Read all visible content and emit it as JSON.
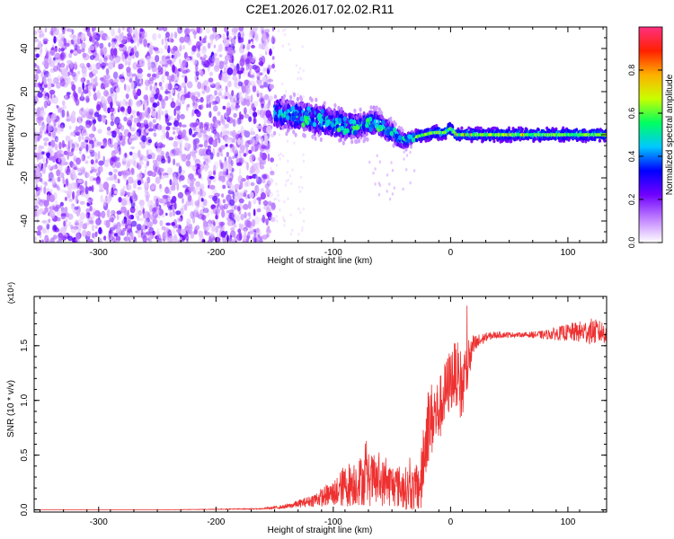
{
  "chart_data": [
    {
      "type": "heatmap",
      "title": "C2E1.2026.017.02.02.R11",
      "xlabel": "Height of straight line (km)",
      "ylabel": "Frequency (Hz)",
      "xlim": [
        -355,
        133
      ],
      "ylim": [
        -50,
        50
      ],
      "xticks": [
        -300,
        -200,
        -100,
        0,
        100
      ],
      "xtick_labels": [
        "-300",
        "-200",
        "-100",
        "0",
        "100"
      ],
      "yticks": [
        -40,
        -20,
        0,
        20,
        40
      ],
      "ytick_labels": [
        "-40",
        "-20",
        "0",
        "20",
        "40"
      ],
      "noise_region_x": [
        -355,
        -155
      ],
      "signal_track": [
        {
          "x": -150,
          "f": 10,
          "halfwidth": 6
        },
        {
          "x": -130,
          "f": 9,
          "halfwidth": 6
        },
        {
          "x": -110,
          "f": 7,
          "halfwidth": 6
        },
        {
          "x": -95,
          "f": 5,
          "halfwidth": 6
        },
        {
          "x": -80,
          "f": 4,
          "halfwidth": 5
        },
        {
          "x": -65,
          "f": 6,
          "halfwidth": 5
        },
        {
          "x": -50,
          "f": 1,
          "halfwidth": 4
        },
        {
          "x": -40,
          "f": -3,
          "halfwidth": 3
        },
        {
          "x": -30,
          "f": -1,
          "halfwidth": 2
        },
        {
          "x": -15,
          "f": 1,
          "halfwidth": 2
        },
        {
          "x": -5,
          "f": 1,
          "halfwidth": 2
        },
        {
          "x": 0,
          "f": 3,
          "halfwidth": 2
        },
        {
          "x": 5,
          "f": 0,
          "halfwidth": 2
        },
        {
          "x": 20,
          "f": 0,
          "halfwidth": 2
        },
        {
          "x": 133,
          "f": 0,
          "halfwidth": 2
        }
      ],
      "colorbar": {
        "label": "Normalized spectral amplitude",
        "range": [
          0,
          1
        ],
        "ticks": [
          0.0,
          0.2,
          0.4,
          0.6,
          0.8
        ],
        "tick_labels": [
          "0.0",
          "0.2",
          "0.4",
          "0.6",
          "0.8"
        ],
        "colors": [
          "#ffffff",
          "#c080ff",
          "#7000ff",
          "#0000ff",
          "#00c8ff",
          "#00ff60",
          "#c8ff00",
          "#ffb000",
          "#ff2000",
          "#ff3080"
        ]
      }
    },
    {
      "type": "line",
      "xlabel": "Height of straight line (km)",
      "ylabel": "SNR (10 * v/v)",
      "scale_label": "(x10⁴)",
      "xlim": [
        -355,
        133
      ],
      "ylim": [
        -0.02,
        1.95
      ],
      "xticks": [
        -300,
        -200,
        -100,
        0,
        100
      ],
      "xtick_labels": [
        "-300",
        "-200",
        "-100",
        "0",
        "100"
      ],
      "yticks": [
        0.0,
        0.5,
        1.0,
        1.5
      ],
      "ytick_labels": [
        "0.0",
        "0.5",
        "1.0",
        "1.5"
      ],
      "color": "#ee3030",
      "series": [
        {
          "name": "SNR",
          "x": [
            -355,
            -250,
            -160,
            -140,
            -120,
            -100,
            -90,
            -80,
            -70,
            -60,
            -50,
            -40,
            -30,
            -25,
            -20,
            -15,
            -10,
            -5,
            0,
            5,
            10,
            15,
            20,
            30,
            40,
            60,
            80,
            100,
            120,
            133
          ],
          "y": [
            0.0,
            0.0,
            0.01,
            0.03,
            0.08,
            0.15,
            0.22,
            0.26,
            0.28,
            0.25,
            0.23,
            0.2,
            0.18,
            0.25,
            0.75,
            0.85,
            0.9,
            1.05,
            1.2,
            1.25,
            1.1,
            1.35,
            1.5,
            1.58,
            1.6,
            1.6,
            1.6,
            1.62,
            1.63,
            1.62
          ],
          "noise_amplitude": [
            0.0,
            0.0,
            0.005,
            0.02,
            0.05,
            0.12,
            0.2,
            0.22,
            0.25,
            0.22,
            0.2,
            0.2,
            0.2,
            0.3,
            0.35,
            0.35,
            0.3,
            0.3,
            0.3,
            0.3,
            0.35,
            0.25,
            0.1,
            0.04,
            0.03,
            0.02,
            0.04,
            0.08,
            0.12,
            0.1
          ]
        }
      ]
    }
  ]
}
